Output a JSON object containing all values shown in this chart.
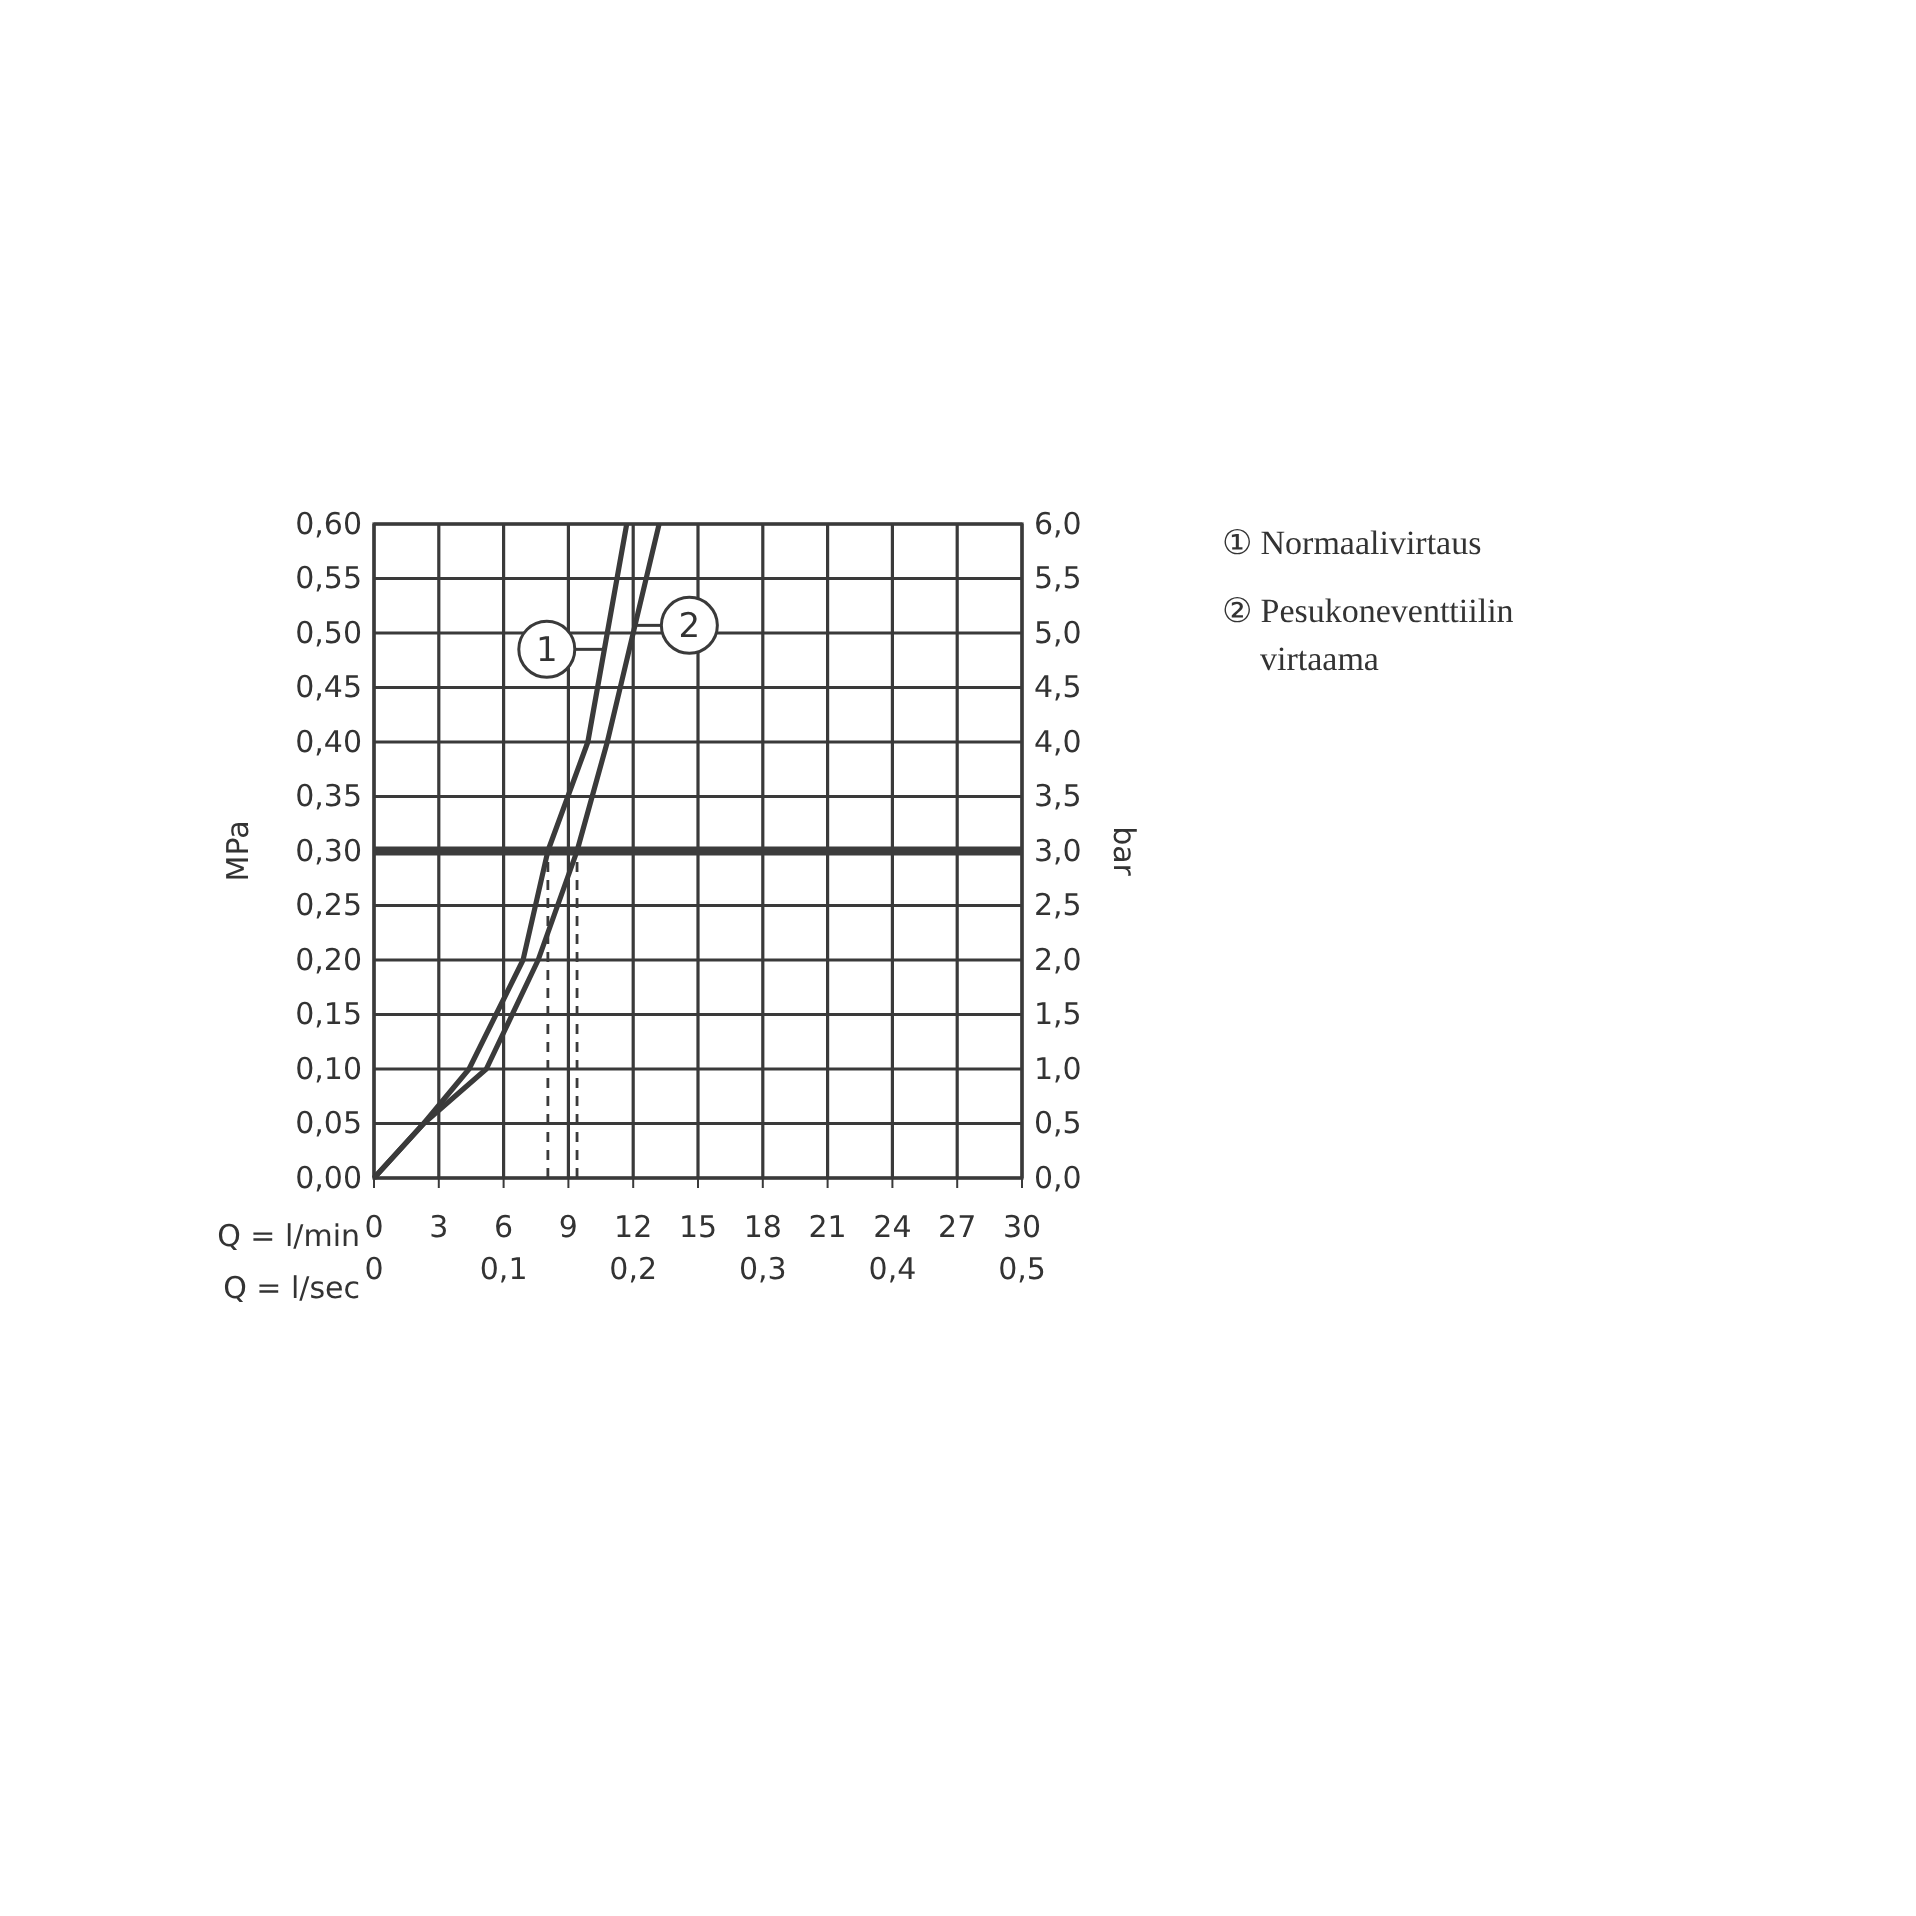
{
  "chart_data": {
    "type": "line",
    "xlabel": "Q = l/min",
    "ylabel": "MPa",
    "y2label": "bar",
    "x2label": "Q = l/sec",
    "xlim": [
      0,
      30
    ],
    "xticks": [
      0,
      3,
      6,
      9,
      12,
      15,
      18,
      21,
      24,
      27,
      30
    ],
    "ylim": [
      0,
      0.6
    ],
    "yticks": [
      {
        "value": 0,
        "label": "0,00"
      },
      {
        "value": 0.05,
        "label": "0,05"
      },
      {
        "value": 0.1,
        "label": "0,10"
      },
      {
        "value": 0.15,
        "label": "0,15"
      },
      {
        "value": 0.2,
        "label": "0,20"
      },
      {
        "value": 0.25,
        "label": "0,25"
      },
      {
        "value": 0.3,
        "label": "0,30"
      },
      {
        "value": 0.35,
        "label": "0,35"
      },
      {
        "value": 0.4,
        "label": "0,40"
      },
      {
        "value": 0.45,
        "label": "0,45"
      },
      {
        "value": 0.5,
        "label": "0,50"
      },
      {
        "value": 0.55,
        "label": "0,55"
      },
      {
        "value": 0.6,
        "label": "0,60"
      }
    ],
    "y2lim": [
      0,
      6
    ],
    "y2ticks": [
      {
        "value": 0,
        "label": "0,0"
      },
      {
        "value": 0.5,
        "label": "0,5"
      },
      {
        "value": 1,
        "label": "1,0"
      },
      {
        "value": 1.5,
        "label": "1,5"
      },
      {
        "value": 2,
        "label": "2,0"
      },
      {
        "value": 2.5,
        "label": "2,5"
      },
      {
        "value": 3,
        "label": "3,0"
      },
      {
        "value": 3.5,
        "label": "3,5"
      },
      {
        "value": 4,
        "label": "4,0"
      },
      {
        "value": 4.5,
        "label": "4,5"
      },
      {
        "value": 5,
        "label": "5,0"
      },
      {
        "value": 5.5,
        "label": "5,5"
      },
      {
        "value": 6,
        "label": "6,0"
      }
    ],
    "x2lim": [
      0,
      0.5
    ],
    "x2ticks": [
      0,
      {
        "value": 0.1,
        "label": "0,1"
      },
      {
        "value": 0.2,
        "label": "0,2"
      },
      {
        "value": 0.3,
        "label": "0,3"
      },
      {
        "value": 0.4,
        "label": "0,4"
      },
      {
        "value": 0.5,
        "label": "0,5"
      }
    ],
    "grid": true,
    "legend": "right",
    "line_style": "solid",
    "marker": "none",
    "series": [
      {
        "name": "① Normaalivirtaus",
        "color": "#3a3a3a",
        "x": [
          0,
          2.3,
          4.4,
          5.65,
          6.9,
          8.05,
          9.9,
          10.8,
          11.7
        ],
        "values": [
          0,
          0.05,
          0.1,
          0.15,
          0.2,
          0.3,
          0.4,
          0.5,
          0.6
        ]
      },
      {
        "name": "② Pesukoneventtiilin virtaama",
        "color": "#3a3a3a",
        "x": [
          0,
          2.3,
          5.2,
          7.6,
          9.4,
          10.8,
          12.0,
          13.2
        ],
        "values": [
          0,
          0.05,
          0.1,
          0.2,
          0.3,
          0.4,
          0.5,
          0.6
        ]
      },
      {
        "color": "#3a3a3a",
        "line_style": "dashed",
        "x": [
          8.05,
          8.05
        ],
        "values": [
          0,
          0.3
        ]
      },
      {
        "color": "#3a3a3a",
        "line_style": "dashed",
        "x": [
          9.4,
          9.4
        ],
        "values": [
          0,
          0.3
        ]
      }
    ],
    "ref_lines": [
      {
        "axis": "y",
        "value": 0.3,
        "color": "#3c3c3c"
      }
    ],
    "annotations": [
      {
        "text": "1",
        "x": 8.0,
        "y": 0.485
      },
      {
        "text": "2",
        "x": 14.6,
        "y": 0.507
      }
    ]
  }
}
